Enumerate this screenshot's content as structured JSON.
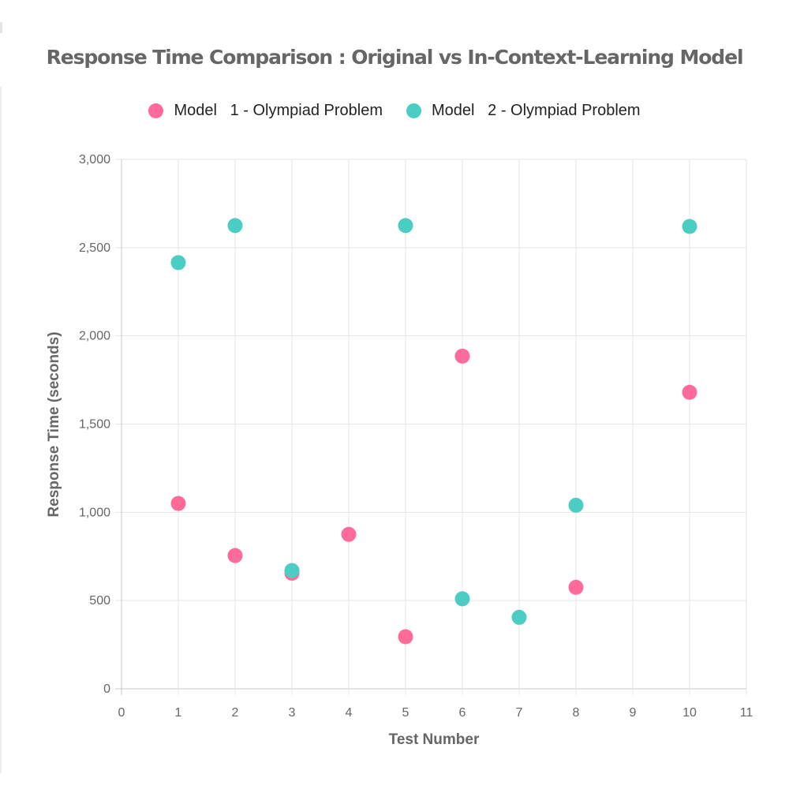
{
  "chart_data": {
    "type": "scatter",
    "title": "Response Time Comparison : Original vs In-Context-Learning Model",
    "xlabel": "Test Number",
    "ylabel": "Response Time (seconds)",
    "xlim": [
      0,
      11
    ],
    "ylim": [
      0,
      3000
    ],
    "x_ticks": [
      0,
      1,
      2,
      3,
      4,
      5,
      6,
      7,
      8,
      9,
      10,
      11
    ],
    "y_ticks": [
      0,
      500,
      1000,
      1500,
      2000,
      2500,
      3000
    ],
    "x_tick_labels": [
      "0",
      "1",
      "2",
      "3",
      "4",
      "5",
      "6",
      "7",
      "8",
      "9",
      "10",
      "11"
    ],
    "y_tick_labels": [
      "0",
      "500",
      "1,000",
      "1,500",
      "2,000",
      "2,500",
      "3,000"
    ],
    "grid": true,
    "legend_position": "top",
    "series": [
      {
        "name": "Model   1 - Olympiad Problem",
        "color": "#ff6b99",
        "points": [
          {
            "x": 1,
            "y": 1050
          },
          {
            "x": 2,
            "y": 755
          },
          {
            "x": 3,
            "y": 655
          },
          {
            "x": 4,
            "y": 875
          },
          {
            "x": 5,
            "y": 295
          },
          {
            "x": 6,
            "y": 1885
          },
          {
            "x": 8,
            "y": 575
          },
          {
            "x": 10,
            "y": 1680
          }
        ]
      },
      {
        "name": "Model   2 - Olympiad Problem",
        "color": "#4ccdc4",
        "points": [
          {
            "x": 1,
            "y": 2415
          },
          {
            "x": 2,
            "y": 2625
          },
          {
            "x": 3,
            "y": 670
          },
          {
            "x": 5,
            "y": 2625
          },
          {
            "x": 6,
            "y": 510
          },
          {
            "x": 7,
            "y": 405
          },
          {
            "x": 8,
            "y": 1040
          },
          {
            "x": 10,
            "y": 2620
          }
        ]
      }
    ]
  }
}
